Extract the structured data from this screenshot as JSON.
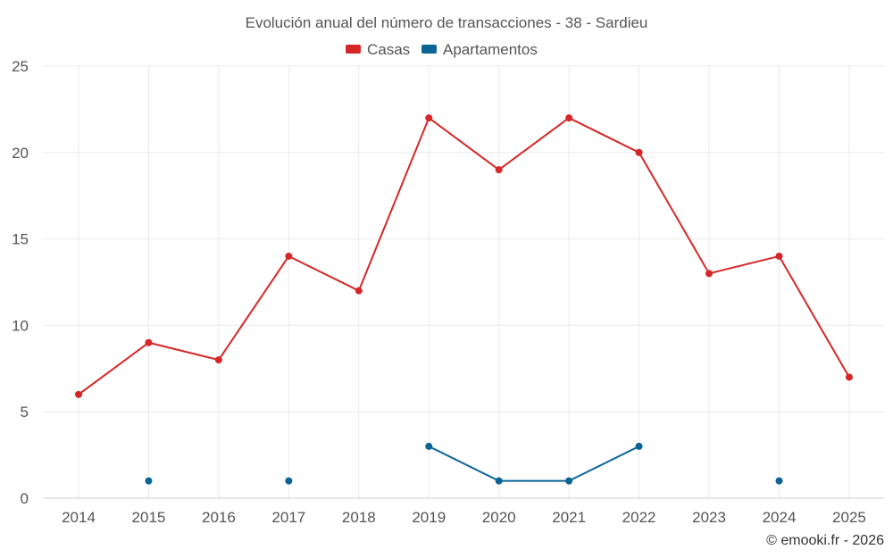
{
  "chart_data": {
    "type": "line",
    "title": "Evolución anual del número de transacciones - 38 - Sardieu",
    "categories": [
      "2014",
      "2015",
      "2016",
      "2017",
      "2018",
      "2019",
      "2020",
      "2021",
      "2022",
      "2023",
      "2024",
      "2025"
    ],
    "ylim": [
      0,
      25
    ],
    "yticks": [
      "0",
      "5",
      "10",
      "15",
      "20",
      "25"
    ],
    "ytick_values": [
      0,
      5,
      10,
      15,
      20,
      25
    ],
    "grid": true,
    "legend_position": "top-center",
    "series": [
      {
        "name": "Casas",
        "color": "#d62728",
        "values": [
          6,
          9,
          8,
          14,
          12,
          22,
          19,
          22,
          20,
          13,
          14,
          7
        ]
      },
      {
        "name": "Apartamentos",
        "color": "#0b6496",
        "values": [
          null,
          1,
          null,
          1,
          null,
          3,
          1,
          1,
          3,
          null,
          1,
          null
        ]
      }
    ]
  },
  "credit": "© emooki.fr - 2026"
}
